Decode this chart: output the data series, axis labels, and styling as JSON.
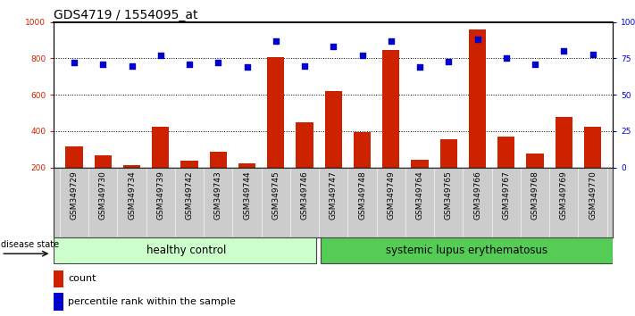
{
  "title": "GDS4719 / 1554095_at",
  "samples": [
    "GSM349729",
    "GSM349730",
    "GSM349734",
    "GSM349739",
    "GSM349742",
    "GSM349743",
    "GSM349744",
    "GSM349745",
    "GSM349746",
    "GSM349747",
    "GSM349748",
    "GSM349749",
    "GSM349764",
    "GSM349765",
    "GSM349766",
    "GSM349767",
    "GSM349768",
    "GSM349769",
    "GSM349770"
  ],
  "counts": [
    315,
    265,
    215,
    425,
    235,
    285,
    225,
    805,
    450,
    620,
    395,
    845,
    240,
    355,
    960,
    370,
    275,
    480,
    425
  ],
  "percentiles": [
    72,
    71,
    70,
    77,
    71,
    72,
    69,
    87,
    70,
    83,
    77,
    87,
    69,
    73,
    88,
    75,
    71,
    80,
    78
  ],
  "healthy_count": 9,
  "sle_count": 10,
  "ylim_left": [
    200,
    1000
  ],
  "ylim_right": [
    0,
    100
  ],
  "yticks_left": [
    200,
    400,
    600,
    800,
    1000
  ],
  "yticks_right": [
    0,
    25,
    50,
    75,
    100
  ],
  "bar_color": "#cc2200",
  "dot_color": "#0000cc",
  "healthy_bg": "#ccffcc",
  "sle_bg": "#55cc55",
  "xticklabel_bg": "#cccccc",
  "title_fontsize": 10,
  "tick_fontsize": 6.5,
  "label_fontsize": 8,
  "group_label_fontsize": 8.5,
  "disease_state_label": "disease state",
  "healthy_label": "healthy control",
  "sle_label": "systemic lupus erythematosus",
  "legend_count": "count",
  "legend_pct": "percentile rank within the sample"
}
